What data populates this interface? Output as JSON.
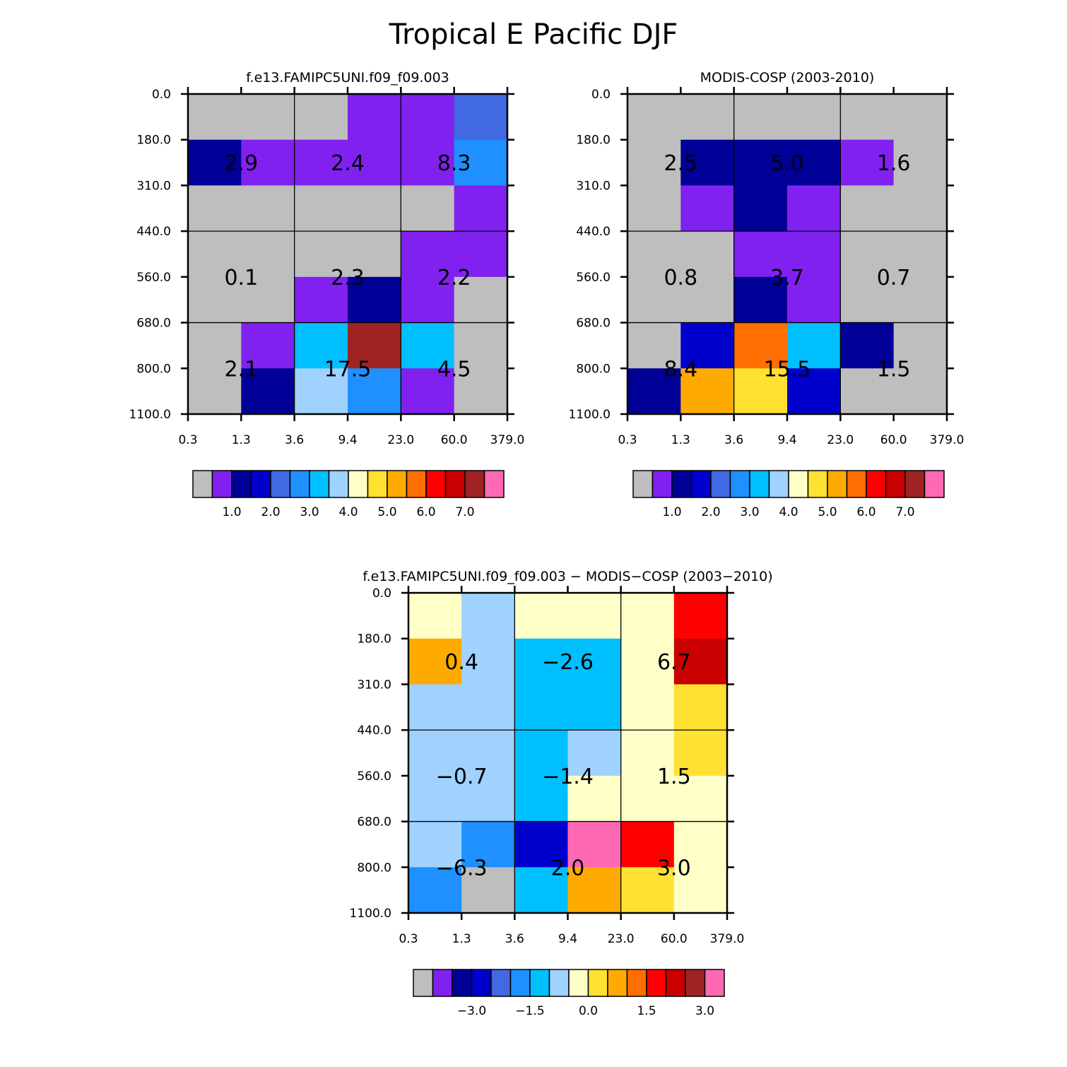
{
  "title": "Tropical E Pacific DJF",
  "palette": {
    "gray": "#bebebe",
    "purple": "#8021f0",
    "navy": "#000096",
    "blue": "#0000cd",
    "royal": "#4169e1",
    "dodger": "#1e90ff",
    "sky": "#00bfff",
    "pale": "#a0d2ff",
    "cream": "#ffffc8",
    "yellow": "#ffe132",
    "orange": "#ffaa00",
    "dorange": "#ff6e00",
    "red": "#ff0000",
    "dred": "#c80000",
    "brown": "#a02323",
    "pink": "#ff69b4"
  },
  "chart_data": [
    {
      "type": "heatmap",
      "title": "f.e13.FAMIPC5UNI.f09_f09.003",
      "x_ticks": [
        "0.3",
        "1.3",
        "3.6",
        "9.4",
        "23.0",
        "60.0",
        "379.0"
      ],
      "y_ticks": [
        "0.0",
        "180.0",
        "310.0",
        "440.0",
        "560.0",
        "680.0",
        "800.0",
        "1100.0"
      ],
      "cells": [
        [
          "gray",
          "gray",
          "gray",
          "purple",
          "purple",
          "royal"
        ],
        [
          "navy",
          "purple",
          "purple",
          "purple",
          "purple",
          "dodger"
        ],
        [
          "gray",
          "gray",
          "gray",
          "gray",
          "gray",
          "purple"
        ],
        [
          "gray",
          "gray",
          "gray",
          "gray",
          "purple",
          "purple"
        ],
        [
          "gray",
          "gray",
          "purple",
          "navy",
          "purple",
          "gray"
        ],
        [
          "gray",
          "purple",
          "sky",
          "brown",
          "sky",
          "gray"
        ],
        [
          "gray",
          "navy",
          "pale",
          "dodger",
          "purple",
          "gray"
        ]
      ],
      "group_values": [
        [
          "2.9",
          "2.4",
          "8.3"
        ],
        [
          "0.1",
          "2.3",
          "2.2"
        ],
        [
          "2.1",
          "17.5",
          "4.5"
        ]
      ],
      "colorbar": {
        "colors": [
          "gray",
          "purple",
          "navy",
          "blue",
          "royal",
          "dodger",
          "sky",
          "pale",
          "cream",
          "yellow",
          "orange",
          "dorange",
          "red",
          "dred",
          "brown",
          "pink"
        ],
        "labels": [
          {
            "after": 1,
            "text": "1.0"
          },
          {
            "after": 3,
            "text": "2.0"
          },
          {
            "after": 5,
            "text": "3.0"
          },
          {
            "after": 7,
            "text": "4.0"
          },
          {
            "after": 9,
            "text": "5.0"
          },
          {
            "after": 11,
            "text": "6.0"
          },
          {
            "after": 13,
            "text": "7.0"
          }
        ]
      }
    },
    {
      "type": "heatmap",
      "title": "MODIS-COSP (2003-2010)",
      "x_ticks": [
        "0.3",
        "1.3",
        "3.6",
        "9.4",
        "23.0",
        "60.0",
        "379.0"
      ],
      "y_ticks": [
        "0.0",
        "180.0",
        "310.0",
        "440.0",
        "560.0",
        "680.0",
        "800.0",
        "1100.0"
      ],
      "cells": [
        [
          "gray",
          "gray",
          "gray",
          "gray",
          "gray",
          "gray"
        ],
        [
          "gray",
          "navy",
          "navy",
          "navy",
          "purple",
          "gray"
        ],
        [
          "gray",
          "purple",
          "navy",
          "purple",
          "gray",
          "gray"
        ],
        [
          "gray",
          "gray",
          "purple",
          "purple",
          "gray",
          "gray"
        ],
        [
          "gray",
          "gray",
          "navy",
          "purple",
          "gray",
          "gray"
        ],
        [
          "gray",
          "blue",
          "dorange",
          "sky",
          "navy",
          "gray"
        ],
        [
          "navy",
          "orange",
          "yellow",
          "blue",
          "gray",
          "gray"
        ]
      ],
      "group_values": [
        [
          "2.5",
          "5.0",
          "1.6"
        ],
        [
          "0.8",
          "3.7",
          "0.7"
        ],
        [
          "8.4",
          "15.5",
          "1.5"
        ]
      ],
      "colorbar": {
        "colors": [
          "gray",
          "purple",
          "navy",
          "blue",
          "royal",
          "dodger",
          "sky",
          "pale",
          "cream",
          "yellow",
          "orange",
          "dorange",
          "red",
          "dred",
          "brown",
          "pink"
        ],
        "labels": [
          {
            "after": 1,
            "text": "1.0"
          },
          {
            "after": 3,
            "text": "2.0"
          },
          {
            "after": 5,
            "text": "3.0"
          },
          {
            "after": 7,
            "text": "4.0"
          },
          {
            "after": 9,
            "text": "5.0"
          },
          {
            "after": 11,
            "text": "6.0"
          },
          {
            "after": 13,
            "text": "7.0"
          }
        ]
      }
    },
    {
      "type": "heatmap",
      "title": "f.e13.FAMIPC5UNI.f09_f09.003 − MODIS−COSP (2003−2010)",
      "x_ticks": [
        "0.3",
        "1.3",
        "3.6",
        "9.4",
        "23.0",
        "60.0",
        "379.0"
      ],
      "y_ticks": [
        "0.0",
        "180.0",
        "310.0",
        "440.0",
        "560.0",
        "680.0",
        "800.0",
        "1100.0"
      ],
      "cells": [
        [
          "cream",
          "pale",
          "cream",
          "cream",
          "cream",
          "red"
        ],
        [
          "orange",
          "pale",
          "sky",
          "sky",
          "cream",
          "dred"
        ],
        [
          "pale",
          "pale",
          "sky",
          "sky",
          "cream",
          "yellow"
        ],
        [
          "pale",
          "pale",
          "sky",
          "pale",
          "cream",
          "yellow"
        ],
        [
          "pale",
          "pale",
          "sky",
          "cream",
          "cream",
          "cream"
        ],
        [
          "pale",
          "dodger",
          "blue",
          "pink",
          "red",
          "cream"
        ],
        [
          "dodger",
          "gray",
          "sky",
          "orange",
          "yellow",
          "cream"
        ]
      ],
      "group_values": [
        [
          "0.4",
          "−2.6",
          "6.7"
        ],
        [
          "−0.7",
          "−1.4",
          "1.5"
        ],
        [
          "−6.3",
          "2.0",
          "3.0"
        ]
      ],
      "colorbar": {
        "colors": [
          "gray",
          "purple",
          "navy",
          "blue",
          "royal",
          "dodger",
          "sky",
          "pale",
          "cream",
          "yellow",
          "orange",
          "dorange",
          "red",
          "dred",
          "brown",
          "pink"
        ],
        "labels": [
          {
            "after": 2,
            "text": "−3.0"
          },
          {
            "after": 5,
            "text": "−1.5"
          },
          {
            "after": 8,
            "text": "0.0"
          },
          {
            "after": 11,
            "text": "1.5"
          },
          {
            "after": 14,
            "text": "3.0"
          }
        ]
      }
    }
  ]
}
